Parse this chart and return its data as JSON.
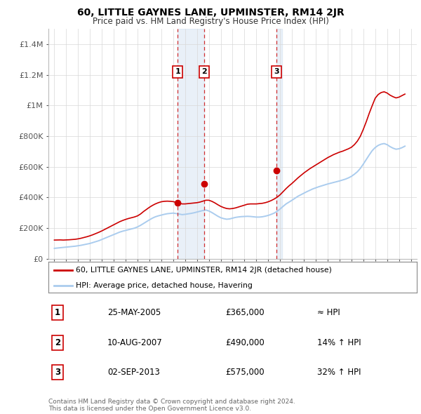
{
  "title": "60, LITTLE GAYNES LANE, UPMINSTER, RM14 2JR",
  "subtitle": "Price paid vs. HM Land Registry's House Price Index (HPI)",
  "line1_label": "60, LITTLE GAYNES LANE, UPMINSTER, RM14 2JR (detached house)",
  "line2_label": "HPI: Average price, detached house, Havering",
  "line1_color": "#cc0000",
  "line2_color": "#aaccee",
  "purchase_dates": [
    2005.39,
    2007.61,
    2013.67
  ],
  "purchase_prices": [
    365000,
    490000,
    575000
  ],
  "purchase_labels": [
    "1",
    "2",
    "3"
  ],
  "purchase_date_strs": [
    "25-MAY-2005",
    "10-AUG-2007",
    "02-SEP-2013"
  ],
  "purchase_price_strs": [
    "£365,000",
    "£490,000",
    "£575,000"
  ],
  "purchase_hpi_strs": [
    "≈ HPI",
    "14% ↑ HPI",
    "32% ↑ HPI"
  ],
  "ylim": [
    0,
    1500000
  ],
  "yticks": [
    0,
    200000,
    400000,
    600000,
    800000,
    1000000,
    1200000,
    1400000
  ],
  "ytick_labels": [
    "£0",
    "£200K",
    "£400K",
    "£600K",
    "£800K",
    "£1M",
    "£1.2M",
    "£1.4M"
  ],
  "xlim_start": 1994.5,
  "xlim_end": 2025.5,
  "copyright_text": "Contains HM Land Registry data © Crown copyright and database right 2024.\nThis data is licensed under the Open Government Licence v3.0.",
  "hpi_years": [
    1995.0,
    1995.25,
    1995.5,
    1995.75,
    1996.0,
    1996.25,
    1996.5,
    1996.75,
    1997.0,
    1997.25,
    1997.5,
    1997.75,
    1998.0,
    1998.25,
    1998.5,
    1998.75,
    1999.0,
    1999.25,
    1999.5,
    1999.75,
    2000.0,
    2000.25,
    2000.5,
    2000.75,
    2001.0,
    2001.25,
    2001.5,
    2001.75,
    2002.0,
    2002.25,
    2002.5,
    2002.75,
    2003.0,
    2003.25,
    2003.5,
    2003.75,
    2004.0,
    2004.25,
    2004.5,
    2004.75,
    2005.0,
    2005.25,
    2005.5,
    2005.75,
    2006.0,
    2006.25,
    2006.5,
    2006.75,
    2007.0,
    2007.25,
    2007.5,
    2007.75,
    2008.0,
    2008.25,
    2008.5,
    2008.75,
    2009.0,
    2009.25,
    2009.5,
    2009.75,
    2010.0,
    2010.25,
    2010.5,
    2010.75,
    2011.0,
    2011.25,
    2011.5,
    2011.75,
    2012.0,
    2012.25,
    2012.5,
    2012.75,
    2013.0,
    2013.25,
    2013.5,
    2013.75,
    2014.0,
    2014.25,
    2014.5,
    2014.75,
    2015.0,
    2015.25,
    2015.5,
    2015.75,
    2016.0,
    2016.25,
    2016.5,
    2016.75,
    2017.0,
    2017.25,
    2017.5,
    2017.75,
    2018.0,
    2018.25,
    2018.5,
    2018.75,
    2019.0,
    2019.25,
    2019.5,
    2019.75,
    2020.0,
    2020.25,
    2020.5,
    2020.75,
    2021.0,
    2021.25,
    2021.5,
    2021.75,
    2022.0,
    2022.25,
    2022.5,
    2022.75,
    2023.0,
    2023.25,
    2023.5,
    2023.75,
    2024.0,
    2024.25,
    2024.5
  ],
  "hpi_values": [
    68000,
    70000,
    72000,
    74000,
    76000,
    78000,
    80000,
    82000,
    85000,
    88000,
    92000,
    96000,
    100000,
    106000,
    112000,
    118000,
    126000,
    134000,
    142000,
    150000,
    158000,
    166000,
    174000,
    180000,
    185000,
    190000,
    195000,
    200000,
    208000,
    218000,
    230000,
    242000,
    254000,
    265000,
    274000,
    280000,
    285000,
    290000,
    294000,
    296000,
    298000,
    295000,
    292000,
    288000,
    290000,
    293000,
    296000,
    300000,
    305000,
    310000,
    315000,
    318000,
    312000,
    302000,
    290000,
    278000,
    268000,
    262000,
    258000,
    260000,
    265000,
    270000,
    273000,
    275000,
    276000,
    277000,
    276000,
    274000,
    272000,
    272000,
    274000,
    278000,
    283000,
    290000,
    298000,
    310000,
    325000,
    342000,
    358000,
    370000,
    382000,
    395000,
    408000,
    418000,
    428000,
    438000,
    447000,
    456000,
    463000,
    470000,
    476000,
    482000,
    488000,
    493000,
    498000,
    503000,
    508000,
    514000,
    520000,
    528000,
    538000,
    552000,
    568000,
    590000,
    618000,
    648000,
    678000,
    706000,
    726000,
    740000,
    748000,
    752000,
    745000,
    732000,
    722000,
    715000,
    718000,
    725000,
    735000
  ],
  "price_years": [
    1995.0,
    1995.25,
    1995.5,
    1995.75,
    1996.0,
    1996.25,
    1996.5,
    1996.75,
    1997.0,
    1997.25,
    1997.5,
    1997.75,
    1998.0,
    1998.25,
    1998.5,
    1998.75,
    1999.0,
    1999.25,
    1999.5,
    1999.75,
    2000.0,
    2000.25,
    2000.5,
    2000.75,
    2001.0,
    2001.25,
    2001.5,
    2001.75,
    2002.0,
    2002.25,
    2002.5,
    2002.75,
    2003.0,
    2003.25,
    2003.5,
    2003.75,
    2004.0,
    2004.25,
    2004.5,
    2004.75,
    2005.0,
    2005.25,
    2005.5,
    2005.75,
    2006.0,
    2006.25,
    2006.5,
    2006.75,
    2007.0,
    2007.25,
    2007.5,
    2007.75,
    2008.0,
    2008.25,
    2008.5,
    2008.75,
    2009.0,
    2009.25,
    2009.5,
    2009.75,
    2010.0,
    2010.25,
    2010.5,
    2010.75,
    2011.0,
    2011.25,
    2011.5,
    2011.75,
    2012.0,
    2012.25,
    2012.5,
    2012.75,
    2013.0,
    2013.25,
    2013.5,
    2013.75,
    2014.0,
    2014.25,
    2014.5,
    2014.75,
    2015.0,
    2015.25,
    2015.5,
    2015.75,
    2016.0,
    2016.25,
    2016.5,
    2016.75,
    2017.0,
    2017.25,
    2017.5,
    2017.75,
    2018.0,
    2018.25,
    2018.5,
    2018.75,
    2019.0,
    2019.25,
    2019.5,
    2019.75,
    2020.0,
    2020.25,
    2020.5,
    2020.75,
    2021.0,
    2021.25,
    2021.5,
    2021.75,
    2022.0,
    2022.25,
    2022.5,
    2022.75,
    2023.0,
    2023.25,
    2023.5,
    2023.75,
    2024.0,
    2024.25,
    2024.5
  ],
  "price_values": [
    122000,
    122500,
    123000,
    122000,
    123000,
    124000,
    125500,
    127000,
    130000,
    134000,
    139000,
    144000,
    150000,
    157000,
    165000,
    173000,
    182000,
    192000,
    202000,
    212000,
    222000,
    232000,
    242000,
    250000,
    257000,
    263000,
    268000,
    273000,
    280000,
    292000,
    308000,
    322000,
    336000,
    348000,
    358000,
    366000,
    372000,
    375000,
    376000,
    375000,
    373000,
    368000,
    363000,
    358000,
    358000,
    360000,
    362000,
    364000,
    366000,
    370000,
    376000,
    382000,
    382000,
    375000,
    365000,
    353000,
    342000,
    334000,
    328000,
    326000,
    328000,
    332000,
    338000,
    344000,
    350000,
    356000,
    358000,
    358000,
    358000,
    360000,
    362000,
    366000,
    372000,
    380000,
    390000,
    402000,
    418000,
    438000,
    458000,
    476000,
    492000,
    510000,
    528000,
    544000,
    560000,
    574000,
    588000,
    600000,
    612000,
    624000,
    636000,
    648000,
    660000,
    670000,
    680000,
    688000,
    696000,
    702000,
    710000,
    718000,
    728000,
    745000,
    768000,
    800000,
    845000,
    895000,
    950000,
    1000000,
    1048000,
    1072000,
    1085000,
    1090000,
    1082000,
    1068000,
    1058000,
    1050000,
    1055000,
    1065000,
    1075000
  ]
}
